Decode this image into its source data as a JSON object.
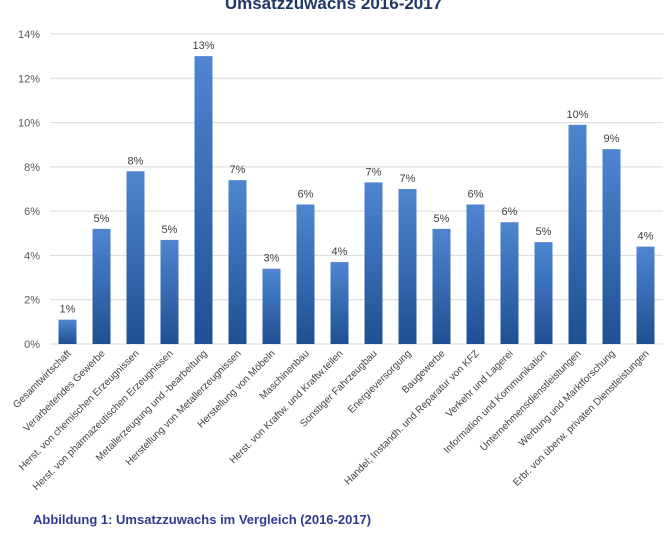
{
  "figure_caption": "Abbildung 1: Umsatzzuwachs im Vergleich (2016-2017)",
  "colors": {
    "bar_top": "#4f86d0",
    "bar_bottom": "#1f4f94",
    "grid": "#d9d9d9",
    "title": "#1f3864",
    "caption": "#2f3b8f"
  },
  "chart_data": {
    "type": "bar",
    "title": "Umsatzzuwachs  2016-2017",
    "xlabel": "",
    "ylabel": "",
    "ylim": [
      0,
      14
    ],
    "yticks": [
      "0%",
      "2%",
      "4%",
      "6%",
      "8%",
      "10%",
      "12%",
      "14%"
    ],
    "grid": true,
    "legend": "none",
    "categories": [
      "Gesamtwirtschaft",
      "Verarbeitendes Gewerbe",
      "Herst. von chemischen Erzeugnissen",
      "Herst. von pharmazeutischen Erzeugnissen",
      "Metallerzeugung und -bearbeitung",
      "Herstellung von Metallerzeugnissen",
      "Herstellung von Möbeln",
      "Maschinenbau",
      "Herst. von Kraftw. und Kraftw.teilen",
      "Sonstiger Fahrzeugbau",
      "Energieversorgung",
      "Baugewerbe",
      "Handel; Instandh. und Reparatur von KFZ",
      "Verkehr und Lagerei",
      "Information und Kommunikation",
      "Unternehmensdienstleistungen",
      "Werbung und Marktforschung",
      "Erbr. von überw. privaten Dienstleistungen"
    ],
    "values": [
      1.1,
      5.2,
      7.8,
      4.7,
      13.0,
      7.4,
      3.4,
      6.3,
      3.7,
      7.3,
      7.0,
      5.2,
      6.3,
      5.5,
      4.6,
      9.9,
      8.8,
      4.4
    ],
    "data_labels": [
      "1%",
      "5%",
      "8%",
      "5%",
      "13%",
      "7%",
      "3%",
      "6%",
      "4%",
      "7%",
      "7%",
      "5%",
      "6%",
      "6%",
      "5%",
      "10%",
      "9%",
      "4%"
    ]
  }
}
